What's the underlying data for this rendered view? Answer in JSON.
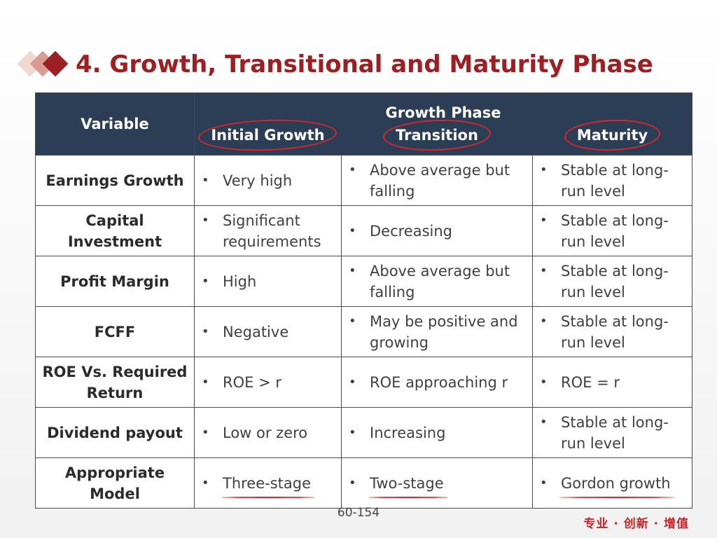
{
  "title": "4. Growth, Transitional and Maturity Phase",
  "table": {
    "variable_header": "Variable",
    "group_header": "Growth  Phase",
    "phase_headers": [
      "Initial Growth",
      "Transition",
      "Maturity"
    ],
    "rows": [
      {
        "variable": "Earnings Growth",
        "initial": "Very high",
        "transition": "Above average but falling",
        "maturity": "Stable at long-run level"
      },
      {
        "variable": "Capital Investment",
        "initial": "Significant requirements",
        "transition": "Decreasing",
        "maturity": "Stable at long-run level"
      },
      {
        "variable": "Profit Margin",
        "initial": "High",
        "transition": "Above average but falling",
        "maturity": "Stable at long-run level"
      },
      {
        "variable": "FCFF",
        "initial": "Negative",
        "transition": "May be positive and growing",
        "maturity": "Stable at long-run level"
      },
      {
        "variable": "ROE Vs. Required Return",
        "initial": "ROE > r",
        "transition": "ROE approaching r",
        "maturity": "ROE = r"
      },
      {
        "variable": "Dividend payout",
        "initial": "Low or zero",
        "transition": "Increasing",
        "maturity": "Stable at long-run level"
      },
      {
        "variable": "Appropriate Model",
        "initial": "Three-stage",
        "transition": "Two-stage",
        "maturity": "Gordon growth"
      }
    ]
  },
  "page_number": "60-154",
  "footer_brand": "专业 · 创新 · 增值",
  "colors": {
    "title": "#9c1f23",
    "header_bg": "#2c3e55",
    "annotation": "#d8262c"
  }
}
